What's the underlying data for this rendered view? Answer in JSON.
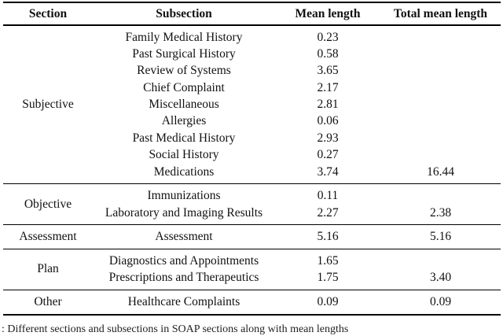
{
  "page": {
    "background": "#ffffff",
    "text_color": "#111111",
    "rule_color": "#000000"
  },
  "table": {
    "headers": {
      "section": "Section",
      "subsection": "Subsection",
      "mean": "Mean length",
      "total": "Total mean length"
    },
    "sections": [
      {
        "section": "Subjective",
        "rows": [
          {
            "subsection": "Family Medical History",
            "mean": "0.23",
            "total": ""
          },
          {
            "subsection": "Past Surgical History",
            "mean": "0.58",
            "total": ""
          },
          {
            "subsection": "Review of Systems",
            "mean": "3.65",
            "total": ""
          },
          {
            "subsection": "Chief Complaint",
            "mean": "2.17",
            "total": ""
          },
          {
            "subsection": "Miscellaneous",
            "mean": "2.81",
            "total": ""
          },
          {
            "subsection": "Allergies",
            "mean": "0.06",
            "total": ""
          },
          {
            "subsection": "Past Medical History",
            "mean": "2.93",
            "total": ""
          },
          {
            "subsection": "Social History",
            "mean": "0.27",
            "total": ""
          },
          {
            "subsection": "Medications",
            "mean": "3.74",
            "total": "16.44"
          }
        ]
      },
      {
        "section": "Objective",
        "rows": [
          {
            "subsection": "Immunizations",
            "mean": "0.11",
            "total": ""
          },
          {
            "subsection": "Laboratory and Imaging Results",
            "mean": "2.27",
            "total": "2.38"
          }
        ]
      },
      {
        "section": "Assessment",
        "rows": [
          {
            "subsection": "Assessment",
            "mean": "5.16",
            "total": "5.16"
          }
        ]
      },
      {
        "section": "Plan",
        "rows": [
          {
            "subsection": "Diagnostics and Appointments",
            "mean": "1.65",
            "total": ""
          },
          {
            "subsection": "Prescriptions and Therapeutics",
            "mean": "1.75",
            "total": "3.40"
          }
        ]
      },
      {
        "section": "Other",
        "rows": [
          {
            "subsection": "Healthcare Complaints",
            "mean": "0.09",
            "total": "0.09"
          }
        ]
      }
    ]
  },
  "caption": {
    "text": ": Different sections and subsections in SOAP sections along with mean lengths"
  },
  "chart_data": {
    "type": "table",
    "title": "",
    "columns": [
      "Section",
      "Subsection",
      "Mean length",
      "Total mean length"
    ],
    "rows": [
      [
        "Subjective",
        "Family Medical History",
        0.23,
        null
      ],
      [
        "Subjective",
        "Past Surgical History",
        0.58,
        null
      ],
      [
        "Subjective",
        "Review of Systems",
        3.65,
        null
      ],
      [
        "Subjective",
        "Chief Complaint",
        2.17,
        null
      ],
      [
        "Subjective",
        "Miscellaneous",
        2.81,
        null
      ],
      [
        "Subjective",
        "Allergies",
        0.06,
        null
      ],
      [
        "Subjective",
        "Past Medical History",
        2.93,
        null
      ],
      [
        "Subjective",
        "Social History",
        0.27,
        null
      ],
      [
        "Subjective",
        "Medications",
        3.74,
        16.44
      ],
      [
        "Objective",
        "Immunizations",
        0.11,
        null
      ],
      [
        "Objective",
        "Laboratory and Imaging Results",
        2.27,
        2.38
      ],
      [
        "Assessment",
        "Assessment",
        5.16,
        5.16
      ],
      [
        "Plan",
        "Diagnostics and Appointments",
        1.65,
        null
      ],
      [
        "Plan",
        "Prescriptions and Therapeutics",
        1.75,
        3.4
      ],
      [
        "Other",
        "Healthcare Complaints",
        0.09,
        0.09
      ]
    ]
  }
}
